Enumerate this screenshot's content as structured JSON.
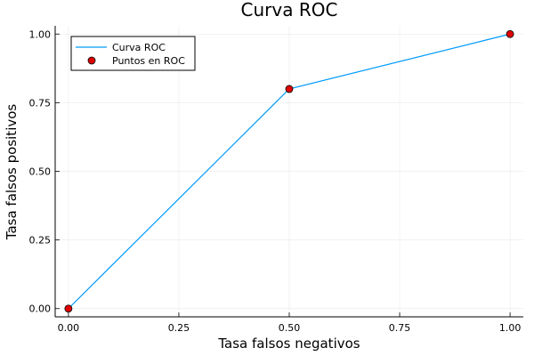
{
  "chart_data": {
    "type": "line",
    "title": "Curva ROC",
    "xlabel": "Tasa falsos negativos",
    "ylabel": "Tasa falsos positivos",
    "xlim": [
      -0.03,
      1.03
    ],
    "ylim": [
      -0.03,
      1.03
    ],
    "xticks": [
      0.0,
      0.25,
      0.5,
      0.75,
      1.0
    ],
    "xtick_labels": [
      "0.00",
      "0.25",
      "0.50",
      "0.75",
      "1.00"
    ],
    "yticks": [
      0.0,
      0.25,
      0.5,
      0.75,
      1.0
    ],
    "ytick_labels": [
      "0.00",
      "0.25",
      "0.50",
      "0.75",
      "1.00"
    ],
    "grid": true,
    "legend_position": "top-left",
    "series": [
      {
        "name": "Curva ROC",
        "kind": "line",
        "color": "#009AFA",
        "x": [
          0.0,
          0.5,
          1.0
        ],
        "y": [
          0.0,
          0.8,
          1.0
        ]
      },
      {
        "name": "Puntos en ROC",
        "kind": "scatter",
        "color": "#E00000",
        "x": [
          0.0,
          0.5,
          1.0
        ],
        "y": [
          0.0,
          0.8,
          1.0
        ]
      }
    ]
  }
}
